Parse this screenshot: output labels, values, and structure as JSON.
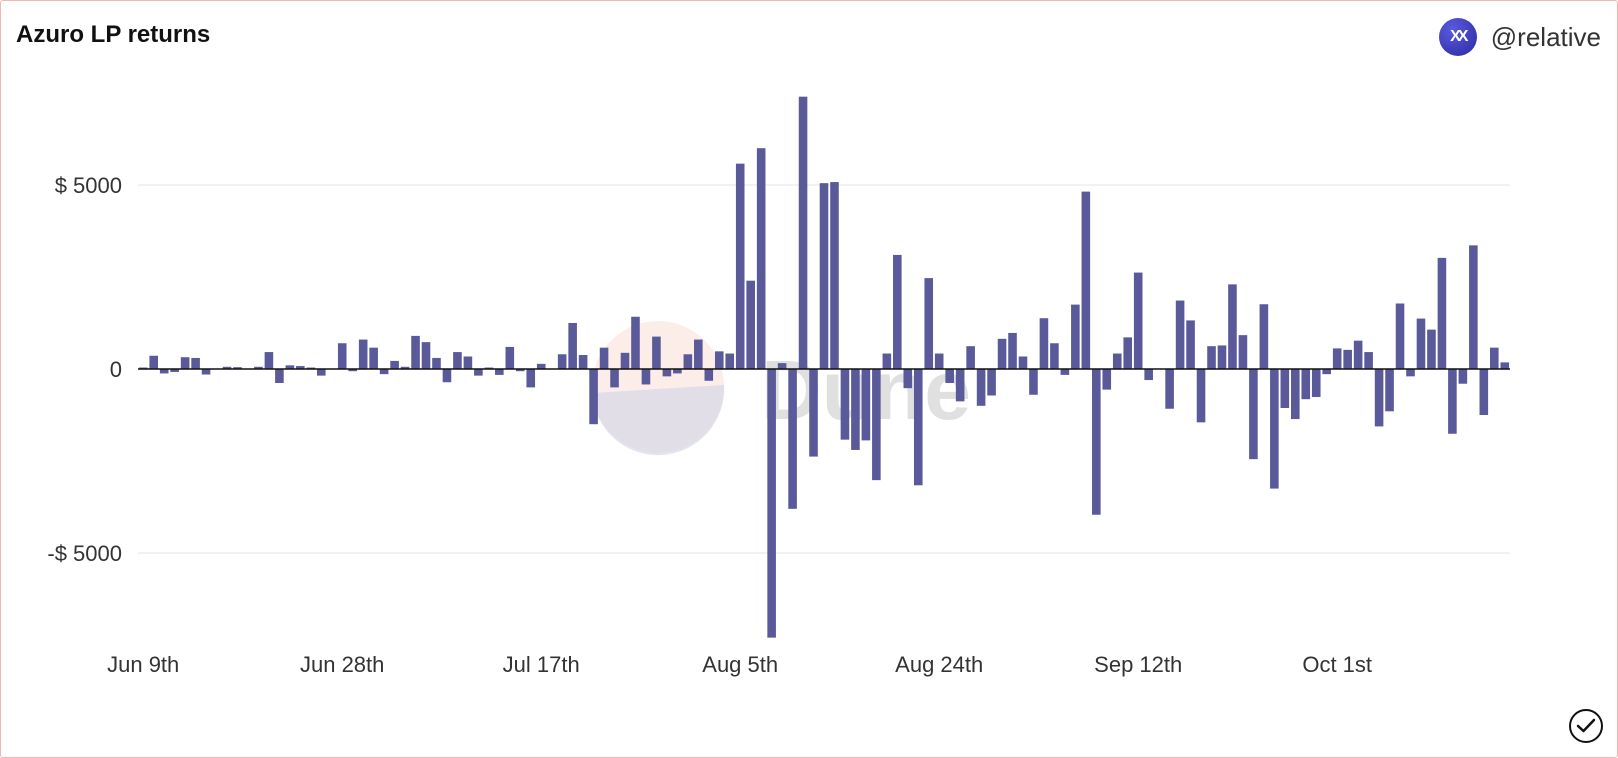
{
  "header": {
    "title": "Azuro LP returns",
    "author_handle": "@relative",
    "avatar_icon": "azuro-logo-icon"
  },
  "watermark": {
    "text": "Dune"
  },
  "footer": {
    "status_icon": "check-circle-icon"
  },
  "colors": {
    "bar": "#5a5a9a",
    "zero_line": "#111111",
    "grid": "#e6e6e6"
  },
  "chart_data": {
    "type": "bar",
    "title": "Azuro LP returns",
    "xlabel": "",
    "ylabel": "",
    "ylim": [
      -7300,
      7400
    ],
    "y_ticks": [
      {
        "value": 5000,
        "label": "$ 5000"
      },
      {
        "value": 0,
        "label": "0"
      },
      {
        "value": -5000,
        "label": "-$ 5000"
      }
    ],
    "x_ticks": [
      {
        "index": 0,
        "label": "Jun 9th"
      },
      {
        "index": 19,
        "label": "Jun 28th"
      },
      {
        "index": 38,
        "label": "Jul 17th"
      },
      {
        "index": 57,
        "label": "Aug 5th"
      },
      {
        "index": 76,
        "label": "Aug 24th"
      },
      {
        "index": 95,
        "label": "Sep 12th"
      },
      {
        "index": 114,
        "label": "Oct 1st"
      }
    ],
    "grid": true,
    "series": [
      {
        "name": "LP returns",
        "values": [
          40,
          360,
          -120,
          -80,
          320,
          300,
          -150,
          0,
          60,
          50,
          0,
          60,
          460,
          -380,
          100,
          80,
          40,
          -180,
          0,
          700,
          -60,
          800,
          580,
          -140,
          220,
          60,
          900,
          730,
          300,
          -360,
          460,
          340,
          -180,
          40,
          -160,
          600,
          -60,
          -500,
          140,
          0,
          400,
          1250,
          380,
          -1500,
          580,
          -500,
          440,
          1420,
          -420,
          880,
          -200,
          -120,
          400,
          800,
          -320,
          480,
          420,
          5580,
          2400,
          6000,
          -7300,
          160,
          -3800,
          7400,
          -2380,
          5050,
          5080,
          -1920,
          -2200,
          -1940,
          -3020,
          420,
          3100,
          -520,
          -3160,
          2470,
          420,
          -380,
          -880,
          620,
          -1000,
          -720,
          820,
          980,
          340,
          -700,
          1380,
          700,
          -160,
          1750,
          4820,
          -3960,
          -560,
          420,
          860,
          2620,
          -300,
          0,
          -1080,
          1860,
          1320,
          -1450,
          620,
          640,
          2300,
          920,
          -2450,
          1760,
          -3250,
          -1060,
          -1360,
          -820,
          -760,
          -140,
          560,
          520,
          770,
          460,
          -1560,
          -1150,
          1780,
          -200,
          1370,
          1070,
          3020,
          -1760,
          -400,
          3360,
          -1250,
          580,
          180
        ]
      }
    ]
  }
}
